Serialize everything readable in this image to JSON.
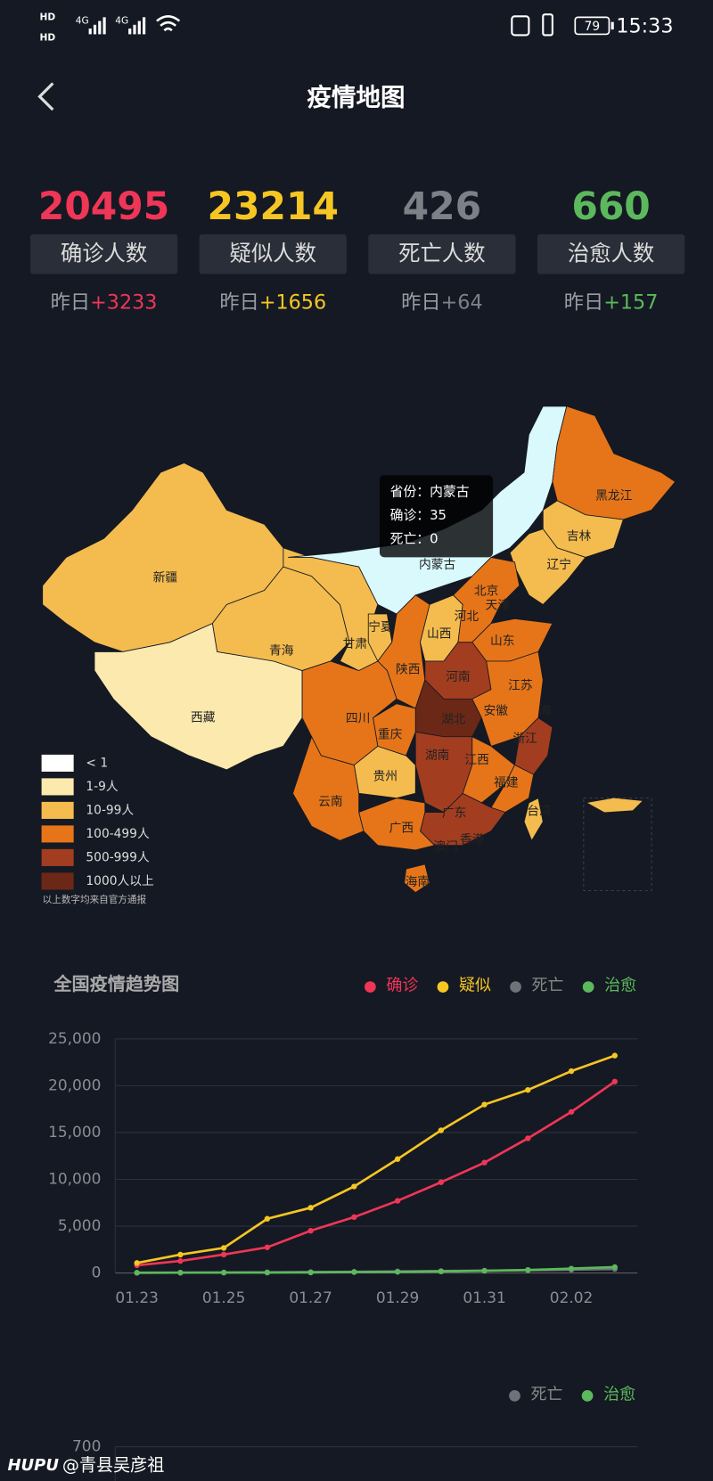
{
  "status_bar": {
    "network": "4G",
    "battery": "79",
    "time": "15:33"
  },
  "header": {
    "title": "疫情地图"
  },
  "stats": [
    {
      "value": 20495,
      "label": "确诊人数",
      "yesterday_label": "昨日",
      "yesterday_change": "+3233",
      "color": "#ef3657"
    },
    {
      "value": 23214,
      "label": "疑似人数",
      "yesterday_label": "昨日",
      "yesterday_change": "+1656",
      "color": "#f6c623"
    },
    {
      "value": 426,
      "label": "死亡人数",
      "yesterday_label": "昨日",
      "yesterday_change": "+64",
      "color": "#7d8087"
    },
    {
      "value": 660,
      "label": "治愈人数",
      "yesterday_label": "昨日",
      "yesterday_change": "+157",
      "color": "#5cb85c"
    }
  ],
  "map": {
    "provinces": [
      "新疆",
      "西藏",
      "青海",
      "甘肃",
      "宁夏",
      "内蒙古",
      "黑龙江",
      "吉林",
      "辽宁",
      "北京",
      "天津",
      "河北",
      "山西",
      "山东",
      "陕西",
      "河南",
      "江苏",
      "安徽",
      "海",
      "四川",
      "湖北",
      "重庆",
      "浙江",
      "湖南",
      "江西",
      "贵州",
      "福建",
      "云南",
      "台湾",
      "广东",
      "广西",
      "香港",
      "澳门",
      "海南"
    ],
    "tooltip": {
      "province_label": "省份：",
      "province": "内蒙古",
      "confirmed_label": "确诊：",
      "confirmed": 35,
      "death_label": "死亡：",
      "death": 0
    },
    "legend": [
      {
        "label": "< 1",
        "color": "#ffffff"
      },
      {
        "label": "1-9人",
        "color": "#fbe9ae"
      },
      {
        "label": "10-99人",
        "color": "#f4bc4f"
      },
      {
        "label": "100-499人",
        "color": "#e67519"
      },
      {
        "label": "500-999人",
        "color": "#a33d20"
      },
      {
        "label": "1000人以上",
        "color": "#6b2816"
      }
    ],
    "note": "以上数字均来自官方通报"
  },
  "chart_data": [
    {
      "type": "line",
      "title": "全国疫情趋势图",
      "categories": [
        "01.23",
        null,
        "01.25",
        null,
        "01.27",
        null,
        "01.29",
        null,
        "01.31",
        null,
        "02.02",
        null
      ],
      "series": [
        {
          "name": "确诊",
          "color": "#ef3657",
          "values": [
            830,
            1287,
            1975,
            2744,
            4515,
            5974,
            7711,
            9692,
            11791,
            14380,
            17205,
            20438
          ]
        },
        {
          "name": "疑似",
          "color": "#f6c623",
          "values": [
            1072,
            1965,
            2684,
            5794,
            6973,
            9239,
            12167,
            15238,
            17988,
            19544,
            21558,
            23214
          ]
        },
        {
          "name": "死亡",
          "color": "#6f7279",
          "values": [
            25,
            41,
            56,
            80,
            106,
            132,
            170,
            213,
            259,
            304,
            361,
            425
          ]
        },
        {
          "name": "治愈",
          "color": "#5cb85c",
          "values": [
            34,
            38,
            49,
            51,
            60,
            103,
            124,
            171,
            243,
            328,
            475,
            632
          ]
        }
      ],
      "ylim": [
        0,
        25000
      ],
      "yticks": [
        0,
        {
          "value": 5000,
          "label": "5,000"
        },
        {
          "value": 10000,
          "label": "10,000"
        },
        {
          "value": 15000,
          "label": "15,000"
        },
        {
          "value": 20000,
          "label": "20,000"
        },
        {
          "value": 25000,
          "label": "25,000"
        }
      ],
      "grid": true
    },
    {
      "type": "line",
      "series": [
        {
          "name": "死亡",
          "color": "#6f7279"
        },
        {
          "name": "治愈",
          "color": "#5cb85c"
        }
      ],
      "yticks": [
        700
      ],
      "grid": true
    }
  ],
  "watermark": {
    "brand": "HUPU",
    "user": "@青县吴彦祖"
  }
}
